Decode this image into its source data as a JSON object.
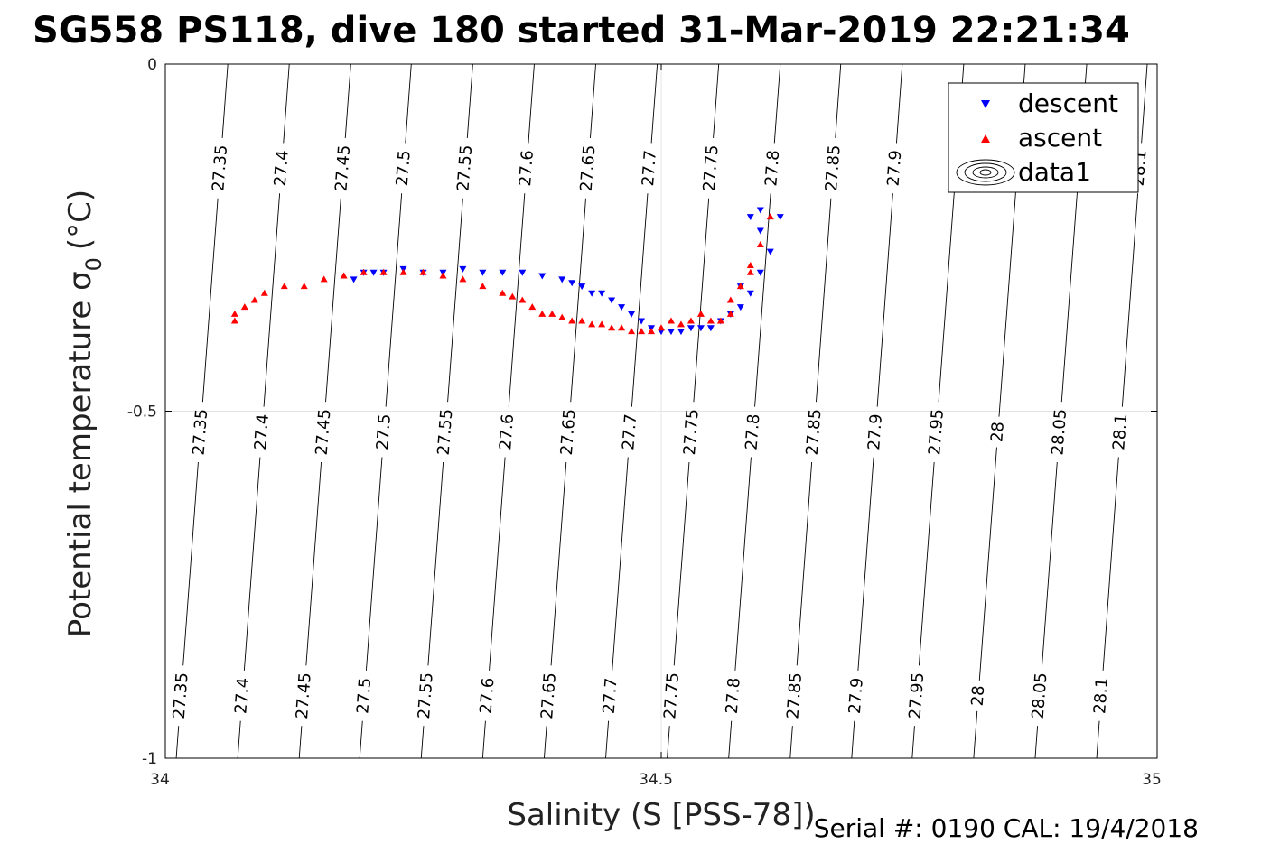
{
  "chart_data": {
    "type": "scatter",
    "title": "SG558 PS118, dive 180 started 31-Mar-2019 22:21:34",
    "xlabel": "Salinity (S [PSS-78])",
    "ylabel": "Potential temperature σ",
    "ylabel_sub": "0",
    "ylabel_unit": "(°C)",
    "footer": "Serial #: 0190  CAL: 19/4/2018",
    "xlim": [
      34,
      35
    ],
    "ylim": [
      -1,
      0
    ],
    "xticks": [
      34,
      34.5,
      35
    ],
    "xtick_labels": [
      "34",
      "34.5",
      "35"
    ],
    "yticks": [
      0,
      -0.5,
      -1
    ],
    "ytick_labels": [
      "0",
      "-0.5",
      "-1"
    ],
    "grid": true,
    "legend": {
      "placement": "top-right",
      "entries": [
        {
          "name": "descent",
          "marker": "triangle-down",
          "color": "#0000ff"
        },
        {
          "name": "ascent",
          "marker": "triangle-up",
          "color": "#ff0000"
        },
        {
          "name": "data1",
          "marker": "contour",
          "color": "#000000"
        }
      ]
    },
    "contours": {
      "levels": [
        27.35,
        27.4,
        27.45,
        27.5,
        27.55,
        27.6,
        27.65,
        27.7,
        27.75,
        27.8,
        27.85,
        27.9,
        27.95,
        28,
        28.05,
        28.1
      ],
      "s_at_top": [
        34.063,
        34.125,
        34.187,
        34.248,
        34.31,
        34.372,
        34.434,
        34.496,
        34.558,
        34.62,
        34.681,
        34.743,
        34.805,
        34.867,
        34.929,
        34.99
      ],
      "s_at_bottom": [
        34.011,
        34.073,
        34.135,
        34.196,
        34.258,
        34.32,
        34.382,
        34.444,
        34.506,
        34.568,
        34.63,
        34.692,
        34.753,
        34.815,
        34.877,
        34.939
      ],
      "label_rows": [
        {
          "theta": -0.15,
          "labels": [
            "27.35",
            "27.4",
            "27.45",
            "27.5",
            "27.55",
            "27.6",
            "27.65",
            "27.7",
            "27.75",
            "27.8",
            "27.85",
            "27.9",
            "",
            "",
            "",
            "28.1"
          ]
        },
        {
          "theta": -0.53,
          "labels": [
            "27.35",
            "27.4",
            "27.45",
            "27.5",
            "27.55",
            "27.6",
            "27.65",
            "27.7",
            "27.75",
            "27.8",
            "27.85",
            "27.9",
            "27.95",
            "28",
            "28.05",
            "28.1"
          ]
        },
        {
          "theta": -0.91,
          "labels": [
            "27.35",
            "27.4",
            "27.45",
            "27.5",
            "27.55",
            "27.6",
            "27.65",
            "27.7",
            "27.75",
            "27.8",
            "27.85",
            "27.9",
            "27.95",
            "28",
            "28.05",
            "28.1"
          ]
        }
      ]
    },
    "series": [
      {
        "name": "descent",
        "color": "#0000ff",
        "x": [
          34.6,
          34.6,
          34.61,
          34.6,
          34.59,
          34.58,
          34.57,
          34.56,
          34.55,
          34.54,
          34.53,
          34.52,
          34.51,
          34.5,
          34.49,
          34.48,
          34.47,
          34.46,
          34.45,
          34.44,
          34.43,
          34.42,
          34.41,
          34.4,
          34.38,
          34.36,
          34.34,
          34.32,
          34.3,
          34.28,
          34.26,
          34.24,
          34.22,
          34.21,
          34.2,
          34.19,
          34.62,
          34.59,
          34.58
        ],
        "y": [
          -0.21,
          -0.24,
          -0.27,
          -0.3,
          -0.33,
          -0.35,
          -0.36,
          -0.37,
          -0.38,
          -0.38,
          -0.38,
          -0.385,
          -0.385,
          -0.385,
          -0.38,
          -0.37,
          -0.36,
          -0.35,
          -0.34,
          -0.33,
          -0.33,
          -0.32,
          -0.315,
          -0.31,
          -0.305,
          -0.3,
          -0.3,
          -0.3,
          -0.295,
          -0.3,
          -0.3,
          -0.295,
          -0.3,
          -0.3,
          -0.3,
          -0.31,
          -0.22,
          -0.22,
          -0.32
        ]
      },
      {
        "name": "ascent",
        "color": "#ff0000",
        "x": [
          34.61,
          34.6,
          34.59,
          34.58,
          34.57,
          34.57,
          34.56,
          34.55,
          34.54,
          34.53,
          34.52,
          34.51,
          34.5,
          34.49,
          34.48,
          34.47,
          34.46,
          34.45,
          34.44,
          34.43,
          34.42,
          34.41,
          34.4,
          34.39,
          34.38,
          34.37,
          34.36,
          34.35,
          34.34,
          34.32,
          34.3,
          34.28,
          34.26,
          34.24,
          34.22,
          34.2,
          34.18,
          34.16,
          34.14,
          34.12,
          34.1,
          34.09,
          34.08,
          34.07,
          34.07,
          34.59
        ],
        "y": [
          -0.22,
          -0.26,
          -0.29,
          -0.32,
          -0.34,
          -0.36,
          -0.37,
          -0.37,
          -0.36,
          -0.37,
          -0.375,
          -0.37,
          -0.38,
          -0.385,
          -0.385,
          -0.385,
          -0.38,
          -0.38,
          -0.375,
          -0.375,
          -0.37,
          -0.37,
          -0.365,
          -0.36,
          -0.36,
          -0.35,
          -0.34,
          -0.335,
          -0.33,
          -0.32,
          -0.31,
          -0.305,
          -0.3,
          -0.3,
          -0.3,
          -0.3,
          -0.305,
          -0.31,
          -0.32,
          -0.32,
          -0.33,
          -0.34,
          -0.35,
          -0.36,
          -0.37,
          -0.3
        ]
      }
    ]
  }
}
